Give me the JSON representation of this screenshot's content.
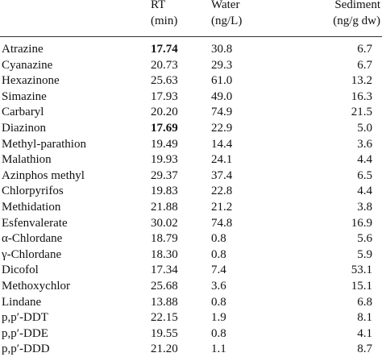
{
  "table": {
    "header": [
      [
        "RT",
        "(min)"
      ],
      [
        "Water",
        "(ng/L)"
      ],
      [
        "Sediment",
        "(ng/g dw)"
      ]
    ],
    "rows": [
      [
        "Atrazine",
        "17.74",
        "30.8",
        "6.7"
      ],
      [
        "Cyanazine",
        "20.73",
        "29.3",
        "6.7"
      ],
      [
        "Hexazinone",
        "25.63",
        "61.0",
        "13.2"
      ],
      [
        "Simazine",
        "17.93",
        "49.0",
        "16.3"
      ],
      [
        "Carbaryl",
        "20.20",
        "74.9",
        "21.5"
      ],
      [
        "Diazinon",
        "17.69",
        "22.9",
        "5.0"
      ],
      [
        "Methyl-parathion",
        "19.49",
        "14.4",
        "3.6"
      ],
      [
        "Malathion",
        "19.93",
        "24.1",
        "4.4"
      ],
      [
        "Azinphos methyl",
        "29.37",
        "37.4",
        "6.5"
      ],
      [
        "Chlorpyrifos",
        "19.83",
        "22.8",
        "4.4"
      ],
      [
        "Methidation",
        "21.88",
        "21.2",
        "3.8"
      ],
      [
        "Esfenvalerate",
        "30.02",
        "74.8",
        "16.9"
      ],
      [
        "α-Chlordane",
        "18.79",
        "0.8",
        "5.6"
      ],
      [
        "γ-Chlordane",
        "18.30",
        "0.8",
        "5.9"
      ],
      [
        "Dicofol",
        "17.34",
        "7.4",
        "53.1"
      ],
      [
        "Methoxychlor",
        "25.68",
        "3.6",
        "15.1"
      ],
      [
        "Lindane",
        "13.88",
        "0.8",
        "6.8"
      ],
      [
        "p,p′-DDT",
        "22.15",
        "1.9",
        "8.1"
      ],
      [
        "p,p′-DDE",
        "19.55",
        "0.8",
        "4.1"
      ],
      [
        "p,p′-DDD",
        "21.20",
        "1.1",
        "8.7"
      ]
    ]
  }
}
